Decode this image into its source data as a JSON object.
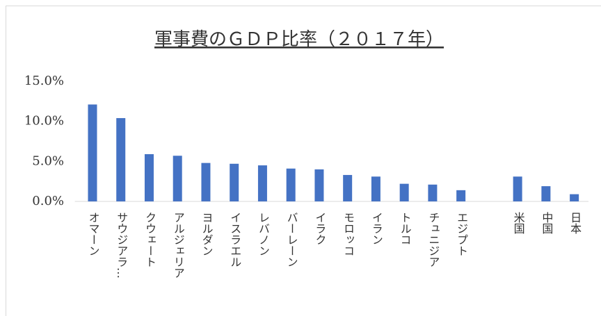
{
  "chart_data": {
    "type": "bar",
    "title": "軍事費のＧＤＰ比率（２０１７年）",
    "categories": [
      "オマーン",
      "サウジアラ…",
      "クウェート",
      "アルジェリア",
      "ヨルダン",
      "イスラエル",
      "レバノン",
      "バーレーン",
      "イラク",
      "モロッコ",
      "イラン",
      "トルコ",
      "チュニジア",
      "エジプト",
      null,
      "米国",
      "中国",
      "日本"
    ],
    "values": [
      12.1,
      10.4,
      5.9,
      5.7,
      4.8,
      4.7,
      4.5,
      4.1,
      4.0,
      3.3,
      3.1,
      2.2,
      2.1,
      1.4,
      null,
      3.1,
      1.9,
      0.9
    ],
    "color": "#4472c4",
    "ylim": [
      0,
      15
    ],
    "yticks": [
      {
        "value": 0,
        "label": "0.0%"
      },
      {
        "value": 5,
        "label": "5.0%"
      },
      {
        "value": 10,
        "label": "10.0%"
      },
      {
        "value": 15,
        "label": "15.0%"
      }
    ],
    "grid": false
  }
}
